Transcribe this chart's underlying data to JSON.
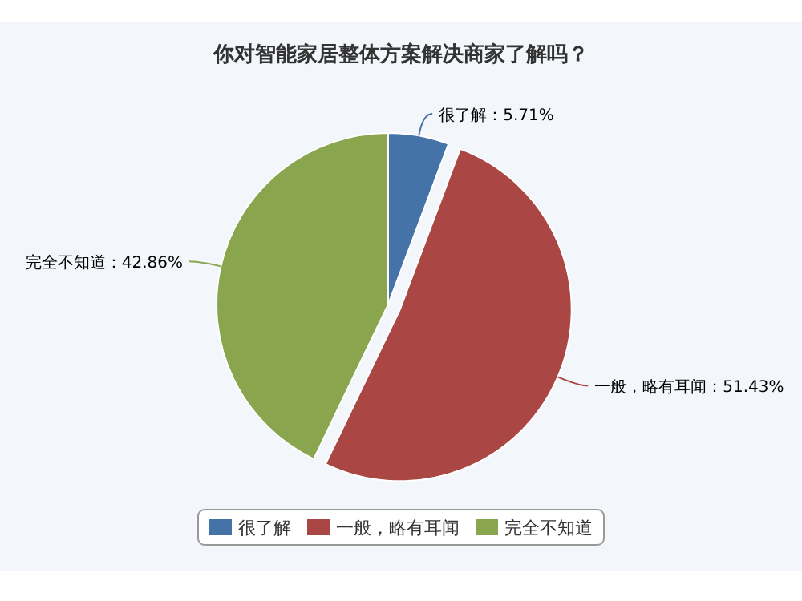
{
  "chart_data": {
    "type": "pie",
    "title": "你对智能家居整体方案解决商家了解吗？",
    "categories": [
      "很了解",
      "一般，略有耳闻",
      "完全不知道"
    ],
    "values": [
      5.71,
      51.43,
      42.86
    ],
    "colors": [
      "#4572a7",
      "#aa4643",
      "#89a54e"
    ],
    "value_labels": [
      "很了解：5.71%",
      "一般，略有耳闻：51.43%",
      "完全不知道：42.86%"
    ],
    "legend": "bottom"
  }
}
